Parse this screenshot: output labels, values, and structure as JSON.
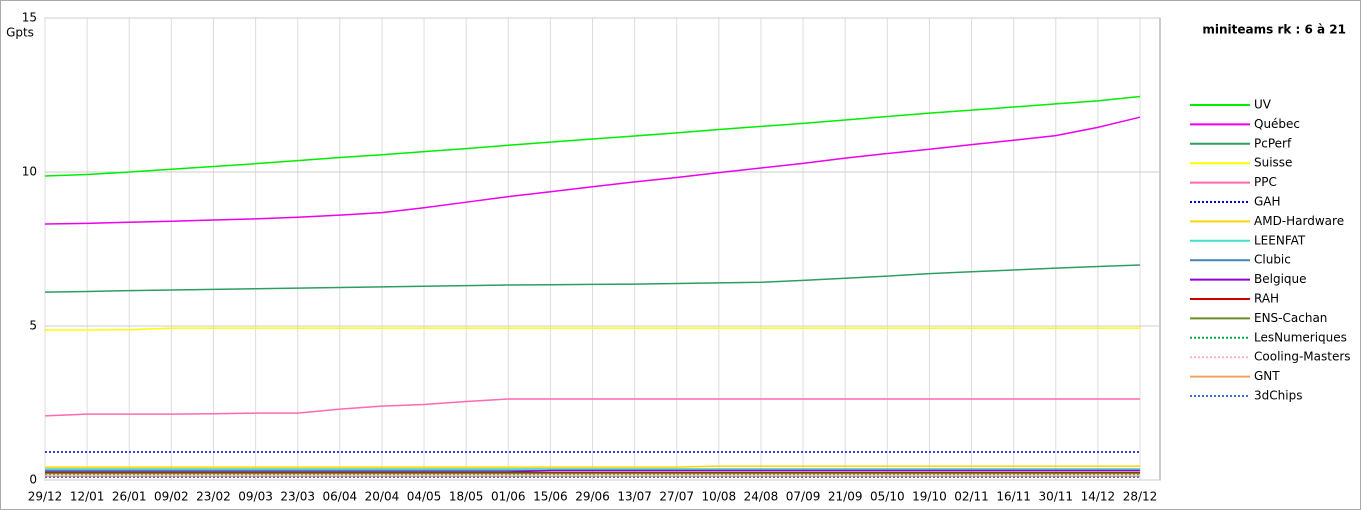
{
  "chart_data": {
    "type": "line",
    "title": "miniteams rk : 6 à 21",
    "y_label": "Gpts",
    "categories": [
      "29/12",
      "12/01",
      "26/01",
      "09/02",
      "23/02",
      "09/03",
      "23/03",
      "06/04",
      "20/04",
      "04/05",
      "18/05",
      "01/06",
      "15/06",
      "29/06",
      "13/07",
      "27/07",
      "10/08",
      "24/08",
      "07/09",
      "21/09",
      "05/10",
      "19/10",
      "02/11",
      "16/11",
      "30/11",
      "14/12",
      "28/12"
    ],
    "ylim": [
      0,
      15
    ],
    "yticks": [
      0,
      5,
      10,
      15
    ],
    "grid": true,
    "legend": "right",
    "series": [
      {
        "name": "UV",
        "color": "#00ee00",
        "dash": false,
        "values": [
          9.87,
          9.92,
          10.0,
          10.09,
          10.18,
          10.27,
          10.37,
          10.47,
          10.56,
          10.66,
          10.76,
          10.87,
          10.97,
          11.07,
          11.17,
          11.27,
          11.38,
          11.48,
          11.58,
          11.69,
          11.8,
          11.91,
          12.01,
          12.11,
          12.21,
          12.31,
          12.45
        ]
      },
      {
        "name": "Québec",
        "color": "#ee00ee",
        "dash": false,
        "values": [
          8.31,
          8.33,
          8.37,
          8.4,
          8.44,
          8.48,
          8.53,
          8.6,
          8.68,
          8.84,
          9.02,
          9.2,
          9.36,
          9.52,
          9.68,
          9.82,
          9.98,
          10.13,
          10.28,
          10.45,
          10.6,
          10.74,
          10.89,
          11.03,
          11.18,
          11.45,
          11.78
        ]
      },
      {
        "name": "PcPerf",
        "color": "#2e9e5e",
        "dash": false,
        "values": [
          6.1,
          6.12,
          6.15,
          6.17,
          6.19,
          6.21,
          6.23,
          6.25,
          6.27,
          6.29,
          6.31,
          6.33,
          6.34,
          6.35,
          6.36,
          6.38,
          6.4,
          6.42,
          6.48,
          6.55,
          6.62,
          6.7,
          6.76,
          6.82,
          6.88,
          6.93,
          6.98
        ]
      },
      {
        "name": "Suisse",
        "color": "#ffff00",
        "dash": false,
        "values": [
          4.87,
          4.87,
          4.88,
          4.93,
          4.93,
          4.93,
          4.93,
          4.93,
          4.93,
          4.93,
          4.93,
          4.93,
          4.93,
          4.93,
          4.93,
          4.93,
          4.93,
          4.93,
          4.93,
          4.93,
          4.93,
          4.93,
          4.93,
          4.93,
          4.93,
          4.93,
          4.93
        ]
      },
      {
        "name": "PPC",
        "color": "#ff69b4",
        "dash": false,
        "values": [
          2.08,
          2.14,
          2.14,
          2.14,
          2.15,
          2.17,
          2.17,
          2.3,
          2.4,
          2.45,
          2.55,
          2.63,
          2.63,
          2.63,
          2.63,
          2.63,
          2.63,
          2.63,
          2.63,
          2.63,
          2.63,
          2.63,
          2.63,
          2.63,
          2.63,
          2.63,
          2.63
        ]
      },
      {
        "name": "GAH",
        "color": "#0000cc",
        "dash": true,
        "values": [
          0.91,
          0.91,
          0.91,
          0.91,
          0.91,
          0.91,
          0.91,
          0.91,
          0.91,
          0.91,
          0.91,
          0.91,
          0.91,
          0.91,
          0.91,
          0.91,
          0.91,
          0.91,
          0.91,
          0.91,
          0.91,
          0.91,
          0.91,
          0.91,
          0.91,
          0.91,
          0.91
        ]
      },
      {
        "name": "AMD-Hardware",
        "color": "#ffd700",
        "dash": false,
        "values": [
          0.42,
          0.42,
          0.42,
          0.42,
          0.42,
          0.42,
          0.42,
          0.42,
          0.42,
          0.42,
          0.42,
          0.42,
          0.42,
          0.42,
          0.42,
          0.42,
          0.45,
          0.45,
          0.45,
          0.45,
          0.45,
          0.45,
          0.45,
          0.45,
          0.45,
          0.45,
          0.45
        ]
      },
      {
        "name": "LEENFAT",
        "color": "#40e0d0",
        "dash": false,
        "values": [
          0.36,
          0.36,
          0.36,
          0.36,
          0.36,
          0.36,
          0.36,
          0.36,
          0.36,
          0.36,
          0.36,
          0.36,
          0.36,
          0.36,
          0.36,
          0.36,
          0.36,
          0.36,
          0.36,
          0.36,
          0.36,
          0.36,
          0.36,
          0.36,
          0.36,
          0.36,
          0.36
        ]
      },
      {
        "name": "Clubic",
        "color": "#4682b4",
        "dash": false,
        "values": [
          0.31,
          0.31,
          0.31,
          0.31,
          0.31,
          0.31,
          0.31,
          0.31,
          0.31,
          0.31,
          0.31,
          0.31,
          0.31,
          0.31,
          0.31,
          0.31,
          0.31,
          0.31,
          0.31,
          0.31,
          0.31,
          0.31,
          0.31,
          0.31,
          0.31,
          0.31,
          0.31
        ]
      },
      {
        "name": "Belgique",
        "color": "#9400d3",
        "dash": false,
        "values": [
          0.26,
          0.26,
          0.26,
          0.26,
          0.26,
          0.26,
          0.26,
          0.26,
          0.26,
          0.26,
          0.26,
          0.26,
          0.31,
          0.31,
          0.31,
          0.31,
          0.31,
          0.31,
          0.31,
          0.31,
          0.31,
          0.31,
          0.31,
          0.31,
          0.31,
          0.31,
          0.31
        ]
      },
      {
        "name": "RAH",
        "color": "#cc0000",
        "dash": false,
        "values": [
          0.24,
          0.24,
          0.24,
          0.24,
          0.24,
          0.24,
          0.24,
          0.24,
          0.24,
          0.24,
          0.24,
          0.24,
          0.24,
          0.24,
          0.24,
          0.24,
          0.24,
          0.24,
          0.24,
          0.24,
          0.24,
          0.24,
          0.24,
          0.24,
          0.24,
          0.24,
          0.24
        ]
      },
      {
        "name": "ENS-Cachan",
        "color": "#6b8e23",
        "dash": false,
        "values": [
          0.21,
          0.21,
          0.21,
          0.21,
          0.21,
          0.21,
          0.21,
          0.21,
          0.21,
          0.21,
          0.21,
          0.21,
          0.21,
          0.21,
          0.21,
          0.21,
          0.21,
          0.21,
          0.21,
          0.21,
          0.21,
          0.21,
          0.21,
          0.21,
          0.21,
          0.21,
          0.21
        ]
      },
      {
        "name": "LesNumeriques",
        "color": "#00aa44",
        "dash": true,
        "values": [
          0.18,
          0.18,
          0.18,
          0.18,
          0.18,
          0.18,
          0.18,
          0.18,
          0.18,
          0.18,
          0.18,
          0.18,
          0.18,
          0.18,
          0.18,
          0.18,
          0.18,
          0.18,
          0.18,
          0.18,
          0.18,
          0.18,
          0.18,
          0.18,
          0.18,
          0.18,
          0.18
        ]
      },
      {
        "name": "Cooling-Masters",
        "color": "#ffb6c1",
        "dash": true,
        "values": [
          0.15,
          0.15,
          0.15,
          0.15,
          0.15,
          0.15,
          0.15,
          0.15,
          0.15,
          0.15,
          0.15,
          0.15,
          0.15,
          0.15,
          0.15,
          0.15,
          0.15,
          0.15,
          0.15,
          0.15,
          0.15,
          0.15,
          0.15,
          0.15,
          0.15,
          0.15,
          0.15
        ]
      },
      {
        "name": "GNT",
        "color": "#f4a460",
        "dash": false,
        "values": [
          0.12,
          0.12,
          0.12,
          0.12,
          0.12,
          0.12,
          0.12,
          0.12,
          0.12,
          0.12,
          0.12,
          0.12,
          0.12,
          0.12,
          0.12,
          0.12,
          0.12,
          0.12,
          0.12,
          0.12,
          0.12,
          0.12,
          0.12,
          0.12,
          0.12,
          0.12,
          0.12
        ]
      },
      {
        "name": "3dChips",
        "color": "#4169e1",
        "dash": true,
        "values": [
          0.09,
          0.09,
          0.09,
          0.09,
          0.09,
          0.09,
          0.09,
          0.09,
          0.09,
          0.09,
          0.09,
          0.09,
          0.09,
          0.09,
          0.09,
          0.09,
          0.09,
          0.09,
          0.09,
          0.09,
          0.09,
          0.09,
          0.09,
          0.09,
          0.09,
          0.09,
          0.09
        ]
      }
    ]
  }
}
